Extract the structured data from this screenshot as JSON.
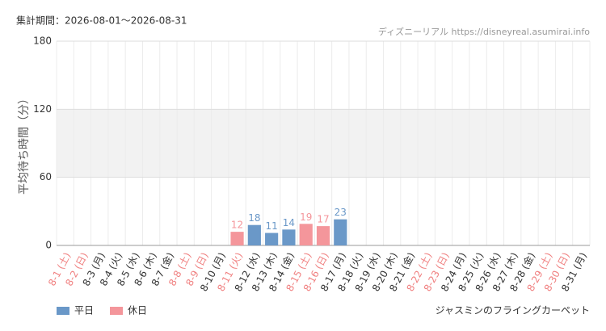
{
  "chart_data": {
    "type": "bar",
    "title": "集計期間：2026-08-01〜2026-08-31",
    "source": "ディズニーリアル https://disneyreal.asumirai.info",
    "subtitle": "ジャスミンのフライングカーペット",
    "y_label": "平均待ち時間（分）",
    "categories": [
      "8-1 (土)",
      "8-2 (日)",
      "8-3 (月)",
      "8-4 (火)",
      "8-5 (水)",
      "8-6 (木)",
      "8-7 (金)",
      "8-8 (土)",
      "8-9 (日)",
      "8-10 (月)",
      "8-11 (火)",
      "8-12 (水)",
      "8-13 (木)",
      "8-14 (金)",
      "8-15 (土)",
      "8-16 (日)",
      "8-17 (月)",
      "8-18 (火)",
      "8-19 (水)",
      "8-20 (木)",
      "8-21 (金)",
      "8-22 (土)",
      "8-23 (日)",
      "8-24 (月)",
      "8-25 (火)",
      "8-26 (水)",
      "8-27 (木)",
      "8-28 (金)",
      "8-29 (土)",
      "8-30 (日)",
      "8-31 (月)"
    ],
    "category_colors": [
      "#f08080",
      "#f08080",
      "#333333",
      "#333333",
      "#333333",
      "#333333",
      "#333333",
      "#f08080",
      "#f08080",
      "#333333",
      "#f08080",
      "#333333",
      "#333333",
      "#333333",
      "#f08080",
      "#f08080",
      "#333333",
      "#333333",
      "#333333",
      "#333333",
      "#333333",
      "#f08080",
      "#f08080",
      "#333333",
      "#333333",
      "#333333",
      "#333333",
      "#333333",
      "#f08080",
      "#f08080",
      "#333333"
    ],
    "series": [
      {
        "name": "平日",
        "color": "#6a98c8",
        "values": [
          null,
          null,
          null,
          null,
          null,
          null,
          null,
          null,
          null,
          null,
          null,
          18,
          11,
          14,
          null,
          null,
          23,
          null,
          null,
          null,
          null,
          null,
          null,
          null,
          null,
          null,
          null,
          null,
          null,
          null,
          null
        ]
      },
      {
        "name": "休日",
        "color": "#f4969b",
        "values": [
          null,
          null,
          null,
          null,
          null,
          null,
          null,
          null,
          null,
          null,
          12,
          null,
          null,
          null,
          19,
          17,
          null,
          null,
          null,
          null,
          null,
          null,
          null,
          null,
          null,
          null,
          null,
          null,
          null,
          null,
          null
        ]
      }
    ],
    "ylim": [
      0,
      180
    ],
    "yticks": [
      0,
      60,
      120,
      180
    ],
    "grid": true
  }
}
